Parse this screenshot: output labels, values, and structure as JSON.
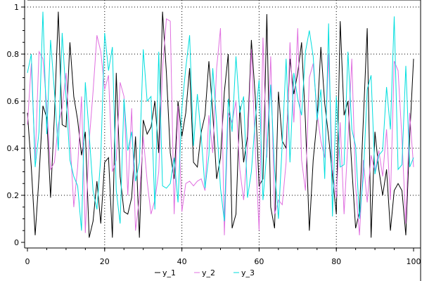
{
  "chart_data": {
    "type": "line",
    "xlim": [
      0,
      100
    ],
    "ylim": [
      0,
      1
    ],
    "xticks": [
      "0",
      "20",
      "40",
      "60",
      "80",
      "100"
    ],
    "yticks": [
      "0",
      "0.2",
      "0.4",
      "0.6",
      "0.8",
      "1"
    ],
    "grid": true,
    "legend_position": "bottom",
    "x": [
      0,
      1,
      2,
      3,
      4,
      5,
      6,
      7,
      8,
      9,
      10,
      11,
      12,
      13,
      14,
      15,
      16,
      17,
      18,
      19,
      20,
      21,
      22,
      23,
      24,
      25,
      26,
      27,
      28,
      29,
      30,
      31,
      32,
      33,
      34,
      35,
      36,
      37,
      38,
      39,
      40,
      41,
      42,
      43,
      44,
      45,
      46,
      47,
      48,
      49,
      50,
      51,
      52,
      53,
      54,
      55,
      56,
      57,
      58,
      59,
      60,
      61,
      62,
      63,
      64,
      65,
      66,
      67,
      68,
      69,
      70,
      71,
      72,
      73,
      74,
      75,
      76,
      77,
      78,
      79,
      80,
      81,
      82,
      83,
      84,
      85,
      86,
      87,
      88,
      89,
      90,
      91,
      92,
      93,
      94,
      95,
      96,
      97,
      98,
      99,
      100
    ],
    "series": [
      {
        "name": "y_1",
        "color": "#000000",
        "values": [
          0.55,
          0.32,
          0.03,
          0.28,
          0.58,
          0.53,
          0.19,
          0.54,
          0.98,
          0.5,
          0.49,
          0.85,
          0.62,
          0.52,
          0.37,
          0.47,
          0.02,
          0.09,
          0.26,
          0.08,
          0.34,
          0.36,
          0.02,
          0.72,
          0.28,
          0.13,
          0.12,
          0.19,
          0.45,
          0.02,
          0.52,
          0.46,
          0.49,
          0.6,
          0.38,
          0.98,
          0.72,
          0.38,
          0.27,
          0.6,
          0.45,
          0.55,
          0.74,
          0.34,
          0.32,
          0.47,
          0.54,
          0.77,
          0.55,
          0.27,
          0.36,
          0.64,
          0.8,
          0.06,
          0.12,
          0.58,
          0.34,
          0.45,
          0.86,
          0.62,
          0.24,
          0.27,
          0.97,
          0.15,
          0.06,
          0.64,
          0.43,
          0.4,
          0.78,
          0.63,
          0.72,
          0.85,
          0.51,
          0.05,
          0.35,
          0.52,
          0.83,
          0.59,
          0.45,
          0.28,
          0.12,
          0.94,
          0.54,
          0.6,
          0.32,
          0.06,
          0.13,
          0.52,
          0.91,
          0.02,
          0.47,
          0.31,
          0.2,
          0.31,
          0.05,
          0.22,
          0.25,
          0.22,
          0.03,
          0.45,
          0.78
        ]
      },
      {
        "name": "y_2",
        "color": "#e070e0",
        "values": [
          0.5,
          0.76,
          0.35,
          0.81,
          0.78,
          0.58,
          0.31,
          0.34,
          0.5,
          0.57,
          0.72,
          0.45,
          0.15,
          0.32,
          0.62,
          0.04,
          0.43,
          0.64,
          0.88,
          0.81,
          0.65,
          0.71,
          0.3,
          0.35,
          0.68,
          0.62,
          0.2,
          0.57,
          0.05,
          0.19,
          0.45,
          0.26,
          0.12,
          0.18,
          0.3,
          0.74,
          0.95,
          0.94,
          0.12,
          0.58,
          0.13,
          0.25,
          0.26,
          0.24,
          0.26,
          0.27,
          0.22,
          0.54,
          0.38,
          0.74,
          0.91,
          0.03,
          0.55,
          0.51,
          0.6,
          0.31,
          0.18,
          0.4,
          0.82,
          0.4,
          0.05,
          0.87,
          0.36,
          0.79,
          0.12,
          0.18,
          0.16,
          0.34,
          0.85,
          0.51,
          0.91,
          0.35,
          0.22,
          0.7,
          0.76,
          0.55,
          0.43,
          0.36,
          0.8,
          0.31,
          0.19,
          0.51,
          0.12,
          0.43,
          0.78,
          0.24,
          0.03,
          0.35,
          0.17,
          0.37,
          0.3,
          0.39,
          0.28,
          0.48,
          0.18,
          0.77,
          0.73,
          0.44,
          0.08,
          0.55,
          0.32
        ]
      },
      {
        "name": "y_3",
        "color": "#00dede",
        "values": [
          0.72,
          0.8,
          0.32,
          0.47,
          0.98,
          0.46,
          0.86,
          0.64,
          0.39,
          0.89,
          0.62,
          0.35,
          0.28,
          0.24,
          0.05,
          0.68,
          0.46,
          0.22,
          0.14,
          0.36,
          0.89,
          0.73,
          0.83,
          0.22,
          0.08,
          0.61,
          0.39,
          0.47,
          0.26,
          0.34,
          0.82,
          0.6,
          0.62,
          0.14,
          0.81,
          0.24,
          0.23,
          0.25,
          0.36,
          0.17,
          0.57,
          0.74,
          0.88,
          0.41,
          0.63,
          0.45,
          0.23,
          0.37,
          0.74,
          0.51,
          0.23,
          0.09,
          0.61,
          0.47,
          0.79,
          0.55,
          0.62,
          0.19,
          0.3,
          0.52,
          0.69,
          0.18,
          0.39,
          0.67,
          0.31,
          0.1,
          0.42,
          0.78,
          0.34,
          0.72,
          0.61,
          0.54,
          0.81,
          0.9,
          0.79,
          0.52,
          0.65,
          0.27,
          0.93,
          0.11,
          0.62,
          0.32,
          0.33,
          0.81,
          0.48,
          0.41,
          0.1,
          0.28,
          0.65,
          0.71,
          0.29,
          0.37,
          0.39,
          0.66,
          0.48,
          0.96,
          0.31,
          0.33,
          0.75,
          0.32,
          0.36
        ]
      }
    ]
  }
}
